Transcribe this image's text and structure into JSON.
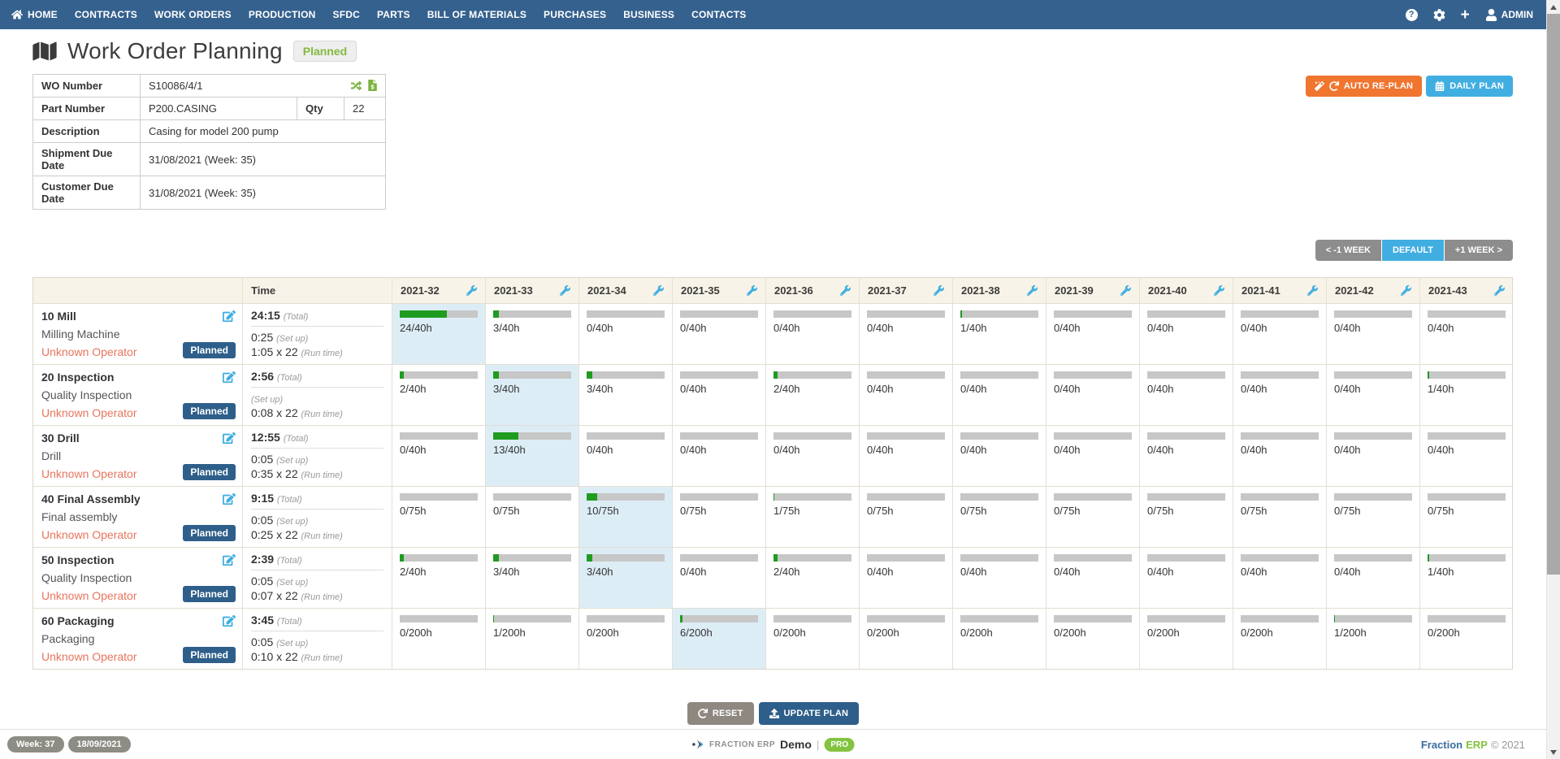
{
  "nav": {
    "items": [
      "HOME",
      "CONTRACTS",
      "WORK ORDERS",
      "PRODUCTION",
      "SFDC",
      "PARTS",
      "BILL OF MATERIALS",
      "PURCHASES",
      "BUSINESS",
      "CONTACTS"
    ],
    "help_glyph": "?",
    "admin_label": "ADMIN"
  },
  "header": {
    "title": "Work Order Planning",
    "status_badge": "Planned"
  },
  "wo_details": {
    "wo_number_label": "WO Number",
    "wo_number": "S10086/4/1",
    "part_number_label": "Part Number",
    "part_number": "P200.CASING",
    "qty_label": "Qty",
    "qty": "22",
    "description_label": "Description",
    "description": "Casing for model 200 pump",
    "shipment_label": "Shipment Due Date",
    "shipment_date": "31/08/2021 (Week: 35)",
    "customer_label": "Customer Due Date",
    "customer_date": "31/08/2021 (Week: 35)"
  },
  "actions": {
    "auto_replan": "AUTO RE-PLAN",
    "daily_plan": "DAILY PLAN",
    "prev_week": "< -1 WEEK",
    "default_view": "DEFAULT",
    "next_week": "+1 WEEK >",
    "reset": "RESET",
    "update_plan": "UPDATE PLAN"
  },
  "plan_table": {
    "time_header": "Time",
    "weeks": [
      "2021-32",
      "2021-33",
      "2021-34",
      "2021-35",
      "2021-36",
      "2021-37",
      "2021-38",
      "2021-39",
      "2021-40",
      "2021-41",
      "2021-42",
      "2021-43"
    ],
    "labels": {
      "total": "(Total)",
      "setup": "(Set up)",
      "runtime": "(Run time)"
    },
    "operations": [
      {
        "name": "10 Mill",
        "resource": "Milling Machine",
        "operator": "Unknown Operator",
        "status": "Planned",
        "total": "24:15",
        "setup": "0:25",
        "runtime": "1:05 x 22",
        "cells": [
          {
            "load": 24,
            "capacity": 40,
            "label": "24/40h",
            "highlight": true
          },
          {
            "load": 3,
            "capacity": 40,
            "label": "3/40h"
          },
          {
            "load": 0,
            "capacity": 40,
            "label": "0/40h"
          },
          {
            "load": 0,
            "capacity": 40,
            "label": "0/40h"
          },
          {
            "load": 0,
            "capacity": 40,
            "label": "0/40h"
          },
          {
            "load": 0,
            "capacity": 40,
            "label": "0/40h"
          },
          {
            "load": 1,
            "capacity": 40,
            "label": "1/40h"
          },
          {
            "load": 0,
            "capacity": 40,
            "label": "0/40h"
          },
          {
            "load": 0,
            "capacity": 40,
            "label": "0/40h"
          },
          {
            "load": 0,
            "capacity": 40,
            "label": "0/40h"
          },
          {
            "load": 0,
            "capacity": 40,
            "label": "0/40h"
          },
          {
            "load": 0,
            "capacity": 40,
            "label": "0/40h"
          }
        ]
      },
      {
        "name": "20 Inspection",
        "resource": "Quality Inspection",
        "operator": "Unknown Operator",
        "status": "Planned",
        "total": "2:56",
        "setup": "",
        "runtime": "0:08 x 22",
        "cells": [
          {
            "load": 2,
            "capacity": 40,
            "label": "2/40h"
          },
          {
            "load": 3,
            "capacity": 40,
            "label": "3/40h",
            "highlight": true
          },
          {
            "load": 3,
            "capacity": 40,
            "label": "3/40h"
          },
          {
            "load": 0,
            "capacity": 40,
            "label": "0/40h"
          },
          {
            "load": 2,
            "capacity": 40,
            "label": "2/40h"
          },
          {
            "load": 0,
            "capacity": 40,
            "label": "0/40h"
          },
          {
            "load": 0,
            "capacity": 40,
            "label": "0/40h"
          },
          {
            "load": 0,
            "capacity": 40,
            "label": "0/40h"
          },
          {
            "load": 0,
            "capacity": 40,
            "label": "0/40h"
          },
          {
            "load": 0,
            "capacity": 40,
            "label": "0/40h"
          },
          {
            "load": 0,
            "capacity": 40,
            "label": "0/40h"
          },
          {
            "load": 1,
            "capacity": 40,
            "label": "1/40h"
          }
        ]
      },
      {
        "name": "30 Drill",
        "resource": "Drill",
        "operator": "Unknown Operator",
        "status": "Planned",
        "total": "12:55",
        "setup": "0:05",
        "runtime": "0:35 x 22",
        "cells": [
          {
            "load": 0,
            "capacity": 40,
            "label": "0/40h"
          },
          {
            "load": 13,
            "capacity": 40,
            "label": "13/40h",
            "highlight": true
          },
          {
            "load": 0,
            "capacity": 40,
            "label": "0/40h"
          },
          {
            "load": 0,
            "capacity": 40,
            "label": "0/40h"
          },
          {
            "load": 0,
            "capacity": 40,
            "label": "0/40h"
          },
          {
            "load": 0,
            "capacity": 40,
            "label": "0/40h"
          },
          {
            "load": 0,
            "capacity": 40,
            "label": "0/40h"
          },
          {
            "load": 0,
            "capacity": 40,
            "label": "0/40h"
          },
          {
            "load": 0,
            "capacity": 40,
            "label": "0/40h"
          },
          {
            "load": 0,
            "capacity": 40,
            "label": "0/40h"
          },
          {
            "load": 0,
            "capacity": 40,
            "label": "0/40h"
          },
          {
            "load": 0,
            "capacity": 40,
            "label": "0/40h"
          }
        ]
      },
      {
        "name": "40 Final Assembly",
        "resource": "Final assembly",
        "operator": "Unknown Operator",
        "status": "Planned",
        "total": "9:15",
        "setup": "0:05",
        "runtime": "0:25 x 22",
        "cells": [
          {
            "load": 0,
            "capacity": 75,
            "label": "0/75h"
          },
          {
            "load": 0,
            "capacity": 75,
            "label": "0/75h"
          },
          {
            "load": 10,
            "capacity": 75,
            "label": "10/75h",
            "highlight": true
          },
          {
            "load": 0,
            "capacity": 75,
            "label": "0/75h"
          },
          {
            "load": 1,
            "capacity": 75,
            "label": "1/75h"
          },
          {
            "load": 0,
            "capacity": 75,
            "label": "0/75h"
          },
          {
            "load": 0,
            "capacity": 75,
            "label": "0/75h"
          },
          {
            "load": 0,
            "capacity": 75,
            "label": "0/75h"
          },
          {
            "load": 0,
            "capacity": 75,
            "label": "0/75h"
          },
          {
            "load": 0,
            "capacity": 75,
            "label": "0/75h"
          },
          {
            "load": 0,
            "capacity": 75,
            "label": "0/75h"
          },
          {
            "load": 0,
            "capacity": 75,
            "label": "0/75h"
          }
        ]
      },
      {
        "name": "50 Inspection",
        "resource": "Quality Inspection",
        "operator": "Unknown Operator",
        "status": "Planned",
        "total": "2:39",
        "setup": "0:05",
        "runtime": "0:07 x 22",
        "cells": [
          {
            "load": 2,
            "capacity": 40,
            "label": "2/40h"
          },
          {
            "load": 3,
            "capacity": 40,
            "label": "3/40h"
          },
          {
            "load": 3,
            "capacity": 40,
            "label": "3/40h",
            "highlight": true
          },
          {
            "load": 0,
            "capacity": 40,
            "label": "0/40h"
          },
          {
            "load": 2,
            "capacity": 40,
            "label": "2/40h"
          },
          {
            "load": 0,
            "capacity": 40,
            "label": "0/40h"
          },
          {
            "load": 0,
            "capacity": 40,
            "label": "0/40h"
          },
          {
            "load": 0,
            "capacity": 40,
            "label": "0/40h"
          },
          {
            "load": 0,
            "capacity": 40,
            "label": "0/40h"
          },
          {
            "load": 0,
            "capacity": 40,
            "label": "0/40h"
          },
          {
            "load": 0,
            "capacity": 40,
            "label": "0/40h"
          },
          {
            "load": 1,
            "capacity": 40,
            "label": "1/40h"
          }
        ]
      },
      {
        "name": "60 Packaging",
        "resource": "Packaging",
        "operator": "Unknown Operator",
        "status": "Planned",
        "total": "3:45",
        "setup": "0:05",
        "runtime": "0:10 x 22",
        "cells": [
          {
            "load": 0,
            "capacity": 200,
            "label": "0/200h"
          },
          {
            "load": 1,
            "capacity": 200,
            "label": "1/200h"
          },
          {
            "load": 0,
            "capacity": 200,
            "label": "0/200h"
          },
          {
            "load": 6,
            "capacity": 200,
            "label": "6/200h",
            "highlight": true
          },
          {
            "load": 0,
            "capacity": 200,
            "label": "0/200h"
          },
          {
            "load": 0,
            "capacity": 200,
            "label": "0/200h"
          },
          {
            "load": 0,
            "capacity": 200,
            "label": "0/200h"
          },
          {
            "load": 0,
            "capacity": 200,
            "label": "0/200h"
          },
          {
            "load": 0,
            "capacity": 200,
            "label": "0/200h"
          },
          {
            "load": 0,
            "capacity": 200,
            "label": "0/200h"
          },
          {
            "load": 1,
            "capacity": 200,
            "label": "1/200h"
          },
          {
            "load": 0,
            "capacity": 200,
            "label": "0/200h"
          }
        ]
      }
    ]
  },
  "footer": {
    "week_badge": "Week: 37",
    "date_badge": "18/09/2021",
    "brand_small": "FRACTION ERP",
    "brand_demo": "Demo",
    "brand_sep": "|",
    "pro_badge": "PRO",
    "brand_name_1": "Fraction",
    "brand_name_2": "ERP",
    "copyright": "© 2021"
  },
  "colors": {
    "nav_bg": "#35618e",
    "accent_orange": "#f0752f",
    "accent_blue": "#41aee1",
    "navy": "#2e5f8a",
    "progress_green": "#1f9c1f",
    "badge_green": "#84c340",
    "operator_warning": "#e8745c",
    "highlight_cell": "#ddedf6",
    "header_beige": "#f7f3e8"
  }
}
